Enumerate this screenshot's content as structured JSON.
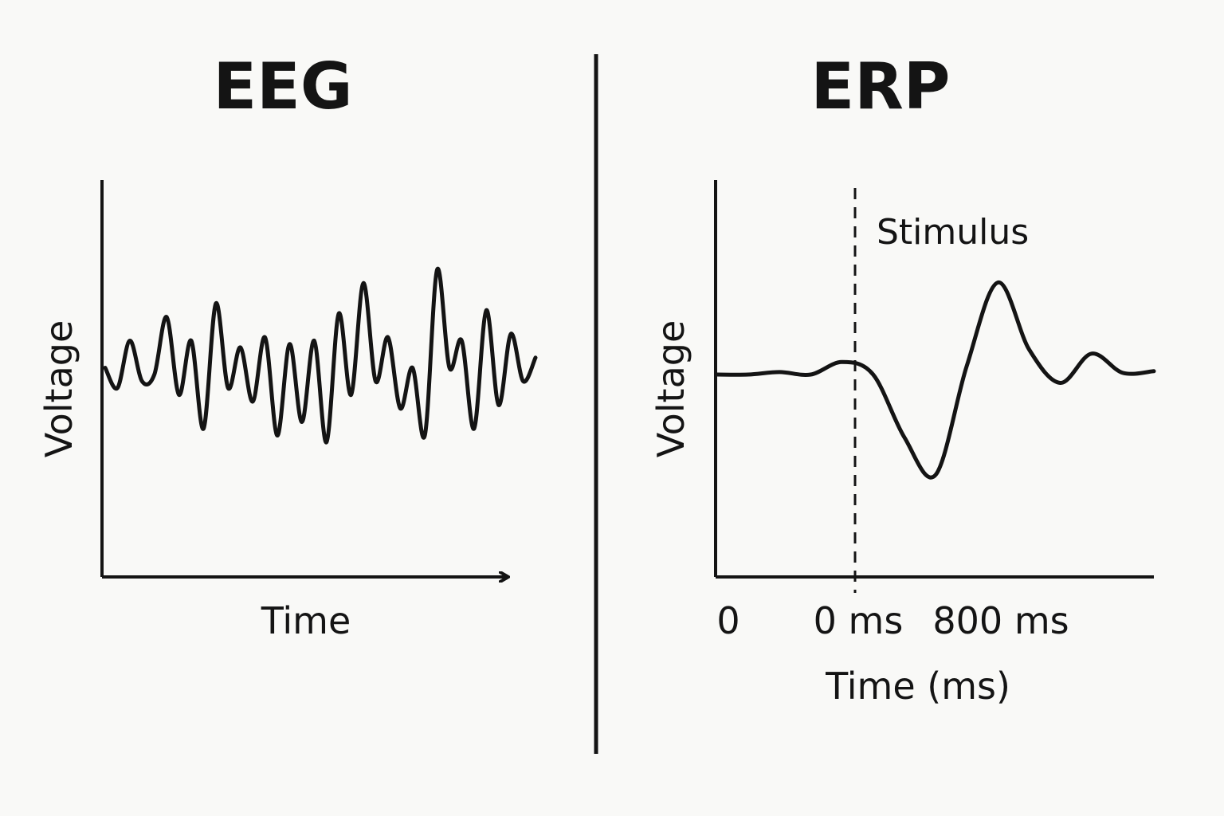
{
  "colors": {
    "background": "#f9f9f7",
    "ink": "#141414"
  },
  "panels": {
    "eeg": {
      "title": "EEG",
      "ylabel": "Voltage",
      "xlabel": "Time"
    },
    "erp": {
      "title": "ERP",
      "ylabel": "Voltage",
      "xlabel": "Time (ms)",
      "stimulus_label": "Stimulus",
      "ticks": [
        "0",
        "0 ms",
        "800 ms"
      ]
    }
  },
  "chart_data": [
    {
      "type": "line",
      "title": "EEG",
      "xlabel": "Time",
      "ylabel": "Voltage",
      "signal": "irregular oscillation",
      "series": [
        {
          "values": [
            0.1,
            -0.2,
            0.5,
            -0.1,
            0.0,
            0.85,
            -0.3,
            0.5,
            -0.8,
            1.05,
            -0.2,
            0.4,
            -0.4,
            0.55,
            -0.9,
            0.45,
            -0.7,
            0.5,
            -1.0,
            0.9,
            -0.3,
            1.35,
            -0.1,
            0.55,
            -0.5,
            0.1,
            -0.9,
            1.55,
            0.1,
            0.5,
            -0.8,
            0.95,
            -0.45,
            0.6,
            -0.1,
            0.25
          ]
        }
      ]
    },
    {
      "type": "line",
      "title": "ERP",
      "xlabel": "Time (ms)",
      "ylabel": "Voltage",
      "x_tick_labels": [
        "0",
        "0 ms",
        "800 ms"
      ],
      "stimulus_marker": {
        "label": "Stimulus",
        "at_tick": "0 ms"
      },
      "series": [
        {
          "values": [
            0.0,
            0.0,
            0.03,
            0.0,
            0.15,
            0.0,
            -0.75,
            -1.2,
            0.1,
            1.1,
            0.3,
            -0.1,
            0.25,
            0.02,
            0.04
          ]
        }
      ]
    }
  ]
}
